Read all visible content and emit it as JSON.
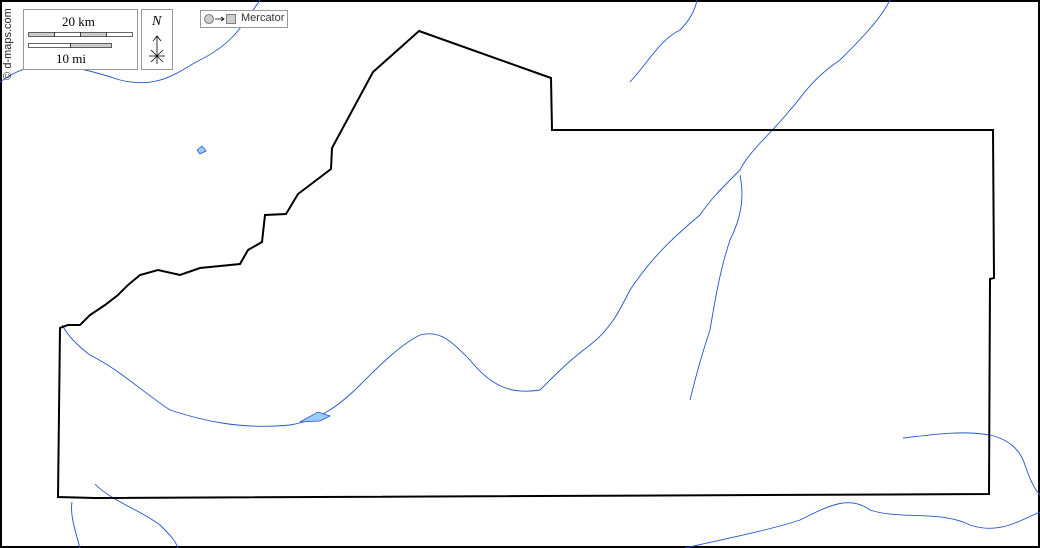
{
  "credit": "© d-maps.com",
  "scale": {
    "km_label": "20 km",
    "mi_label": "10 mi"
  },
  "north": {
    "label": "N"
  },
  "projection": {
    "label": "Mercator",
    "icon": "circle-to-square-icon"
  },
  "colors": {
    "border": "#000000",
    "river": "#2255cc",
    "lake": "#99ccff"
  }
}
